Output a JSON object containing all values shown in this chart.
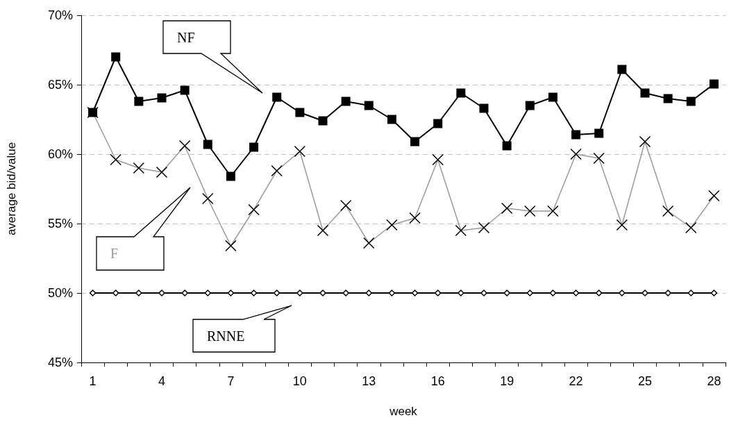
{
  "chart_data": {
    "type": "line",
    "xlabel": "week",
    "ylabel": "average bid/value",
    "categories": [
      "1",
      null,
      null,
      "4",
      null,
      null,
      "7",
      null,
      null,
      "10",
      null,
      null,
      "13",
      null,
      null,
      "16",
      null,
      null,
      "19",
      null,
      null,
      "22",
      null,
      null,
      "25",
      null,
      null,
      "28"
    ],
    "series": [
      {
        "name": "NF",
        "color": "#000000",
        "marker": "square",
        "values": [
          63.0,
          67.0,
          63.8,
          64.05,
          64.6,
          60.7,
          58.4,
          60.5,
          64.1,
          63.0,
          62.4,
          63.8,
          63.5,
          62.5,
          60.9,
          62.2,
          64.4,
          63.3,
          60.6,
          63.5,
          64.1,
          61.4,
          61.5,
          66.1,
          64.4,
          64.0,
          63.8,
          65.05
        ]
      },
      {
        "name": "F",
        "color": "#999999",
        "marker": "cross",
        "values": [
          63.0,
          59.6,
          59.0,
          58.7,
          60.6,
          56.8,
          53.4,
          56.0,
          58.8,
          60.2,
          54.5,
          56.3,
          53.6,
          54.9,
          55.4,
          59.6,
          54.5,
          54.7,
          56.1,
          55.9,
          55.9,
          60.0,
          59.7,
          54.9,
          60.9,
          55.9,
          54.7,
          57.0
        ]
      },
      {
        "name": "RNNE",
        "color": "#000000",
        "marker": "diamond",
        "values": [
          50,
          50,
          50,
          50,
          50,
          50,
          50,
          50,
          50,
          50,
          50,
          50,
          50,
          50,
          50,
          50,
          50,
          50,
          50,
          50,
          50,
          50,
          50,
          50,
          50,
          50,
          50,
          50
        ]
      }
    ],
    "ylim": [
      45,
      70
    ],
    "yticks": [
      {
        "value": 45,
        "label": "45%"
      },
      {
        "value": 50,
        "label": "50%"
      },
      {
        "value": 55,
        "label": "55%"
      },
      {
        "value": 60,
        "label": "60%"
      },
      {
        "value": 65,
        "label": "65%"
      },
      {
        "value": 70,
        "label": "70%"
      }
    ],
    "grid": "y",
    "legend": false,
    "line_style": "solid"
  }
}
